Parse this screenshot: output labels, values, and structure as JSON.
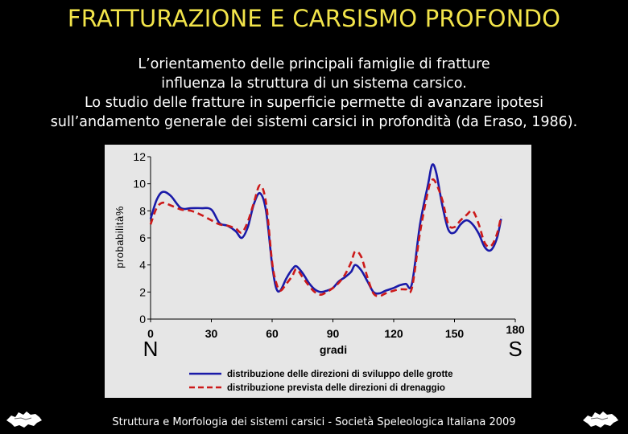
{
  "title": "FRATTURAZIONE E CARSISMO PROFONDO",
  "description": [
    "L’orientamento delle principali famiglie di fratture",
    "influenza la struttura di un sistema carsico.",
    "Lo studio delle fratture in superficie permette di avanzare ipotesi",
    "sull’andamento generale dei sistemi carsici in profondità (da Eraso, 1986)."
  ],
  "footer": "Struttura e Morfologia dei sistemi carsici - Società Speleologica Italiana 2009",
  "chart_data": {
    "type": "line",
    "ylabel": "probabilità%",
    "xlabel": "gradi",
    "x_start_label": "N",
    "x_end_label": "S",
    "xlim": [
      0,
      180
    ],
    "ylim": [
      0,
      12
    ],
    "x_ticks": [
      0,
      30,
      60,
      90,
      120,
      150,
      180
    ],
    "y_ticks": [
      0,
      2,
      4,
      6,
      8,
      10,
      12
    ],
    "grid": false,
    "legend_position": "bottom",
    "series": [
      {
        "name": "distribuzione delle direzioni di sviluppo delle grotte",
        "color": "#1a1aa8",
        "style": "solid",
        "points": [
          [
            0,
            7.4
          ],
          [
            3,
            8.8
          ],
          [
            6,
            9.4
          ],
          [
            10,
            9.1
          ],
          [
            15,
            8.2
          ],
          [
            20,
            8.2
          ],
          [
            25,
            8.2
          ],
          [
            30,
            8.1
          ],
          [
            34,
            7.1
          ],
          [
            38,
            6.9
          ],
          [
            42,
            6.5
          ],
          [
            45,
            6.0
          ],
          [
            48,
            6.8
          ],
          [
            51,
            8.5
          ],
          [
            54,
            9.3
          ],
          [
            57,
            8.0
          ],
          [
            60,
            4.0
          ],
          [
            62,
            2.3
          ],
          [
            64,
            2.1
          ],
          [
            67,
            3.0
          ],
          [
            70,
            3.7
          ],
          [
            72,
            3.9
          ],
          [
            75,
            3.4
          ],
          [
            78,
            2.7
          ],
          [
            81,
            2.2
          ],
          [
            84,
            2.0
          ],
          [
            87,
            2.1
          ],
          [
            90,
            2.3
          ],
          [
            93,
            2.8
          ],
          [
            96,
            3.1
          ],
          [
            99,
            3.5
          ],
          [
            101,
            4.0
          ],
          [
            104,
            3.6
          ],
          [
            107,
            2.8
          ],
          [
            110,
            2.0
          ],
          [
            113,
            1.9
          ],
          [
            116,
            2.1
          ],
          [
            120,
            2.3
          ],
          [
            123,
            2.5
          ],
          [
            126,
            2.6
          ],
          [
            129,
            2.6
          ],
          [
            133,
            7.0
          ],
          [
            137,
            10.0
          ],
          [
            139,
            11.4
          ],
          [
            141,
            10.8
          ],
          [
            144,
            8.4
          ],
          [
            147,
            6.6
          ],
          [
            150,
            6.4
          ],
          [
            153,
            7.0
          ],
          [
            156,
            7.3
          ],
          [
            159,
            7.0
          ],
          [
            162,
            6.3
          ],
          [
            165,
            5.3
          ],
          [
            168,
            5.1
          ],
          [
            171,
            6.0
          ],
          [
            173,
            7.4
          ]
        ]
      },
      {
        "name": "distribuzione prevista delle direzioni di drenaggio",
        "color": "#cc1a1a",
        "style": "dashed",
        "points": [
          [
            0,
            7.0
          ],
          [
            3,
            8.2
          ],
          [
            6,
            8.6
          ],
          [
            10,
            8.4
          ],
          [
            15,
            8.1
          ],
          [
            20,
            8.0
          ],
          [
            25,
            7.7
          ],
          [
            30,
            7.3
          ],
          [
            34,
            7.0
          ],
          [
            38,
            6.9
          ],
          [
            42,
            6.7
          ],
          [
            45,
            6.4
          ],
          [
            48,
            7.2
          ],
          [
            51,
            8.6
          ],
          [
            54,
            9.9
          ],
          [
            57,
            8.6
          ],
          [
            60,
            4.2
          ],
          [
            62,
            2.7
          ],
          [
            64,
            2.1
          ],
          [
            67,
            2.6
          ],
          [
            70,
            3.2
          ],
          [
            72,
            3.7
          ],
          [
            75,
            3.1
          ],
          [
            78,
            2.5
          ],
          [
            81,
            2.0
          ],
          [
            84,
            1.8
          ],
          [
            87,
            2.0
          ],
          [
            90,
            2.3
          ],
          [
            93,
            2.7
          ],
          [
            96,
            3.3
          ],
          [
            99,
            4.2
          ],
          [
            101,
            5.0
          ],
          [
            104,
            4.6
          ],
          [
            107,
            3.1
          ],
          [
            110,
            1.9
          ],
          [
            113,
            1.7
          ],
          [
            116,
            1.9
          ],
          [
            120,
            2.1
          ],
          [
            123,
            2.2
          ],
          [
            126,
            2.2
          ],
          [
            129,
            2.3
          ],
          [
            133,
            6.4
          ],
          [
            137,
            9.5
          ],
          [
            139,
            10.3
          ],
          [
            141,
            10.0
          ],
          [
            144,
            8.8
          ],
          [
            147,
            7.0
          ],
          [
            150,
            6.8
          ],
          [
            153,
            7.3
          ],
          [
            156,
            7.7
          ],
          [
            159,
            8.0
          ],
          [
            162,
            7.0
          ],
          [
            165,
            5.6
          ],
          [
            168,
            5.4
          ],
          [
            171,
            6.3
          ],
          [
            173,
            7.6
          ]
        ]
      }
    ]
  }
}
